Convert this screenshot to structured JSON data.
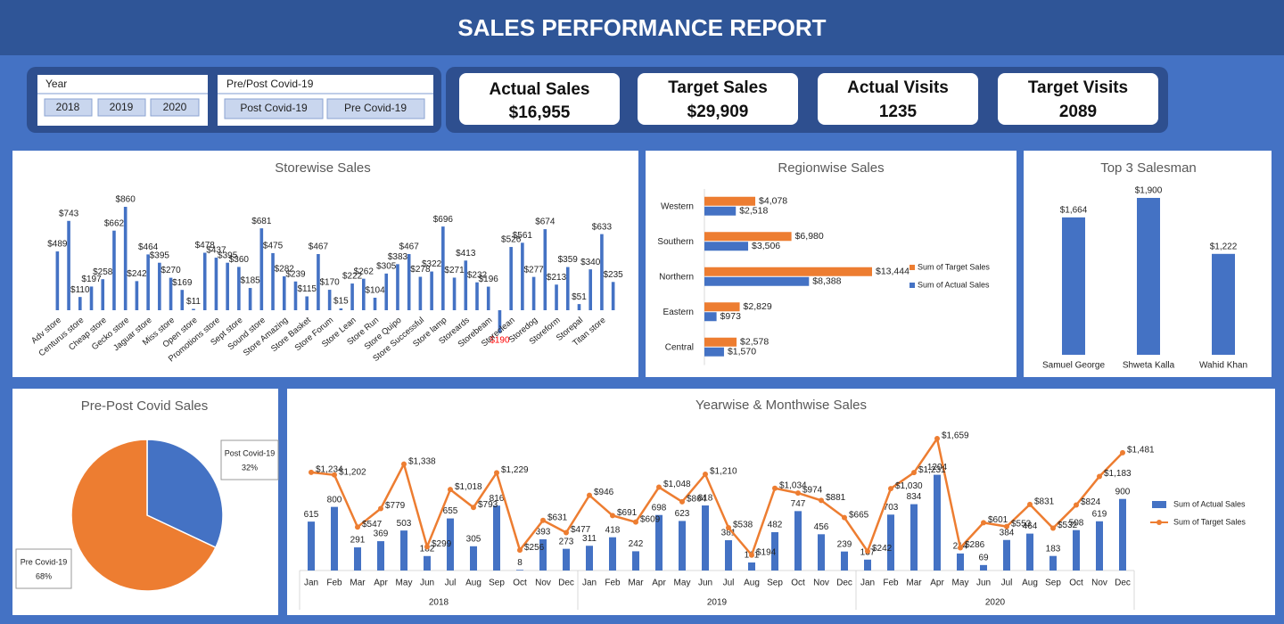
{
  "header": {
    "title": "SALES PERFORMANCE REPORT"
  },
  "slicers": [
    {
      "title": "Year",
      "items": [
        "2018",
        "2019",
        "2020"
      ]
    },
    {
      "title": "Pre/Post Covid-19",
      "items": [
        "Post Covid-19",
        "Pre Covid-19"
      ]
    }
  ],
  "kpis": [
    {
      "label": "Actual Sales",
      "value": "$16,955"
    },
    {
      "label": "Target Sales",
      "value": "$29,909"
    },
    {
      "label": "Actual Visits",
      "value": "1235"
    },
    {
      "label": "Target Visits",
      "value": "2089"
    }
  ],
  "chart_data": [
    {
      "type": "bar",
      "title": "Storewise Sales",
      "color": "#4472c4",
      "negative_label_color": "#ff0000",
      "categories": [
        "Adv store",
        null,
        "Centurus store",
        null,
        "Cheap store",
        null,
        "Gecko store",
        null,
        "Jaguar store",
        null,
        "Miss store",
        null,
        "Open store",
        null,
        "Promotions store",
        null,
        "Sept store",
        null,
        "Sound store",
        null,
        "Store Amazing",
        null,
        "Store Basket",
        null,
        "Store Forum",
        null,
        "Store Lean",
        null,
        "Store Run",
        null,
        "Store Quipo",
        null,
        "Store Successful",
        null,
        "Store lamp",
        null,
        "Storeards",
        null,
        "Storebeam",
        null,
        "Storeclean",
        null,
        "Storedog",
        null,
        "Storeform",
        null,
        "Storepal",
        null,
        "Titan store",
        null
      ],
      "values": [
        489,
        743,
        110,
        197,
        258,
        662,
        860,
        242,
        464,
        395,
        270,
        169,
        11,
        478,
        437,
        395,
        360,
        185,
        681,
        475,
        282,
        239,
        115,
        467,
        170,
        15,
        222,
        262,
        104,
        305,
        383,
        467,
        278,
        322,
        696,
        271,
        413,
        232,
        196,
        -190,
        526,
        561,
        277,
        674,
        213,
        359,
        51,
        340,
        633,
        235
      ],
      "value_labels": [
        "$489",
        "$743",
        "$110",
        "$197",
        "$258",
        "$662",
        "$860",
        "$242",
        "$464",
        "$395",
        "$270",
        "$169",
        "$11",
        "$478",
        "$437",
        "$395",
        "$360",
        "$185",
        "$681",
        "$475",
        "$282",
        "$239",
        "$115",
        "$467",
        "$170",
        "$15",
        "$222",
        "$262",
        "$104",
        "$305",
        "$383",
        "$467",
        "$278",
        "$322",
        "$696",
        "$271",
        "$413",
        "$232",
        "$196",
        "$190",
        "$526",
        "$561",
        "$277",
        "$674",
        "$213",
        "$359",
        "$51",
        "$340",
        "$633",
        "$235"
      ]
    },
    {
      "type": "hbar",
      "title": "Regionwise Sales",
      "categories": [
        "Western",
        "Southern",
        "Northern",
        "Eastern",
        "Central"
      ],
      "series": [
        {
          "name": "Sum of Target Sales",
          "color": "#ed7d31",
          "values": [
            4078,
            6980,
            13444,
            2829,
            2578
          ],
          "value_labels": [
            "$4,078",
            "$6,980",
            "$13,444",
            "$2,829",
            "$2,578"
          ]
        },
        {
          "name": "Sum of Actual Sales",
          "color": "#4472c4",
          "values": [
            2518,
            3506,
            8388,
            973,
            1570
          ],
          "value_labels": [
            "$2,518",
            "$3,506",
            "$8,388",
            "$973",
            "$1,570"
          ]
        }
      ]
    },
    {
      "type": "bar",
      "title": "Top 3 Salesman",
      "color": "#4472c4",
      "categories": [
        "Samuel George",
        "Shweta Kalla",
        "Wahid Khan"
      ],
      "values": [
        1664,
        1900,
        1222
      ],
      "value_labels": [
        "$1,664",
        "$1,900",
        "$1,222"
      ]
    },
    {
      "type": "pie",
      "title": "Pre-Post Covid Sales",
      "categories": [
        "Post Covid-19",
        "Pre Covid-19"
      ],
      "values": [
        32,
        68
      ],
      "value_labels": [
        "32%",
        "68%"
      ],
      "colors": [
        "#4472c4",
        "#ed7d31"
      ]
    },
    {
      "type": "combo",
      "title": "Yearwise & Monthwise Sales",
      "categories": [
        "Jan",
        "Feb",
        "Mar",
        "Apr",
        "May",
        "Jun",
        "Jul",
        "Aug",
        "Sep",
        "Oct",
        "Nov",
        "Dec",
        "Jan",
        "Feb",
        "Mar",
        "Apr",
        "May",
        "Jun",
        "Jul",
        "Aug",
        "Sep",
        "Oct",
        "Nov",
        "Dec",
        "Jan",
        "Feb",
        "Mar",
        "Apr",
        "May",
        "Jun",
        "Jul",
        "Aug",
        "Sep",
        "Oct",
        "Nov",
        "Dec"
      ],
      "groups": [
        "2018",
        "2019",
        "2020"
      ],
      "series": [
        {
          "name": "Sum of Actual Sales",
          "kind": "bar",
          "color": "#4472c4",
          "values": [
            615,
            800,
            291,
            369,
            503,
            182,
            655,
            305,
            816,
            8,
            393,
            273,
            311,
            418,
            242,
            698,
            623,
            818,
            381,
            101,
            482,
            747,
            456,
            239,
            137,
            703,
            834,
            1204,
            214,
            69,
            384,
            464,
            183,
            508,
            619,
            900
          ]
        },
        {
          "name": "Sum of Target Sales",
          "kind": "line",
          "color": "#ed7d31",
          "values": [
            1234,
            1202,
            547,
            779,
            1338,
            299,
            1018,
            793,
            1229,
            256,
            631,
            477,
            946,
            691,
            609,
            1048,
            864,
            1210,
            538,
            194,
            1034,
            974,
            881,
            665,
            242,
            1030,
            1231,
            1659,
            286,
            601,
            553,
            831,
            532,
            824,
            1183,
            1481
          ],
          "value_labels": [
            "$1,234",
            "$1,202",
            "$547",
            "$779",
            "$1,338",
            "$299",
            "$1,018",
            "$793",
            "$1,229",
            "$256",
            "$631",
            "$477",
            "$946",
            "$691",
            "$609",
            "$1,048",
            "$864",
            "$1,210",
            "$538",
            "$194",
            "$1,034",
            "$974",
            "$881",
            "$665",
            "$242",
            "$1,030",
            "$1,231",
            "$1,659",
            "$286",
            "$601",
            "$553",
            "$831",
            "$532",
            "$824",
            "$1,183",
            "$1,481"
          ]
        }
      ]
    }
  ]
}
